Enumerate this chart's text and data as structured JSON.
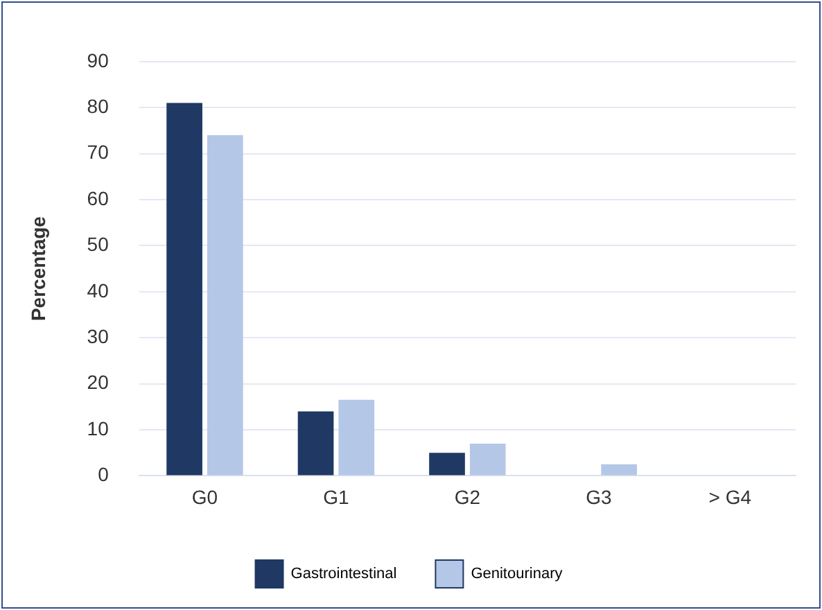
{
  "chart_data": {
    "type": "bar",
    "ylabel": "Percentage",
    "categories": [
      "G0",
      "G1",
      "G2",
      "G3",
      "> G4"
    ],
    "series": [
      {
        "name": "Gastrointestinal",
        "color": "#1f3864",
        "values": [
          81,
          14,
          5,
          0,
          0
        ]
      },
      {
        "name": "Genitourinary",
        "color": "#b4c7e7",
        "values": [
          74,
          16.5,
          7,
          2.5,
          0
        ]
      }
    ],
    "ylim": [
      0,
      90
    ],
    "yticks": [
      0,
      10,
      20,
      30,
      40,
      50,
      60,
      70,
      80,
      90
    ],
    "grid": "y",
    "legend": "bottom"
  }
}
